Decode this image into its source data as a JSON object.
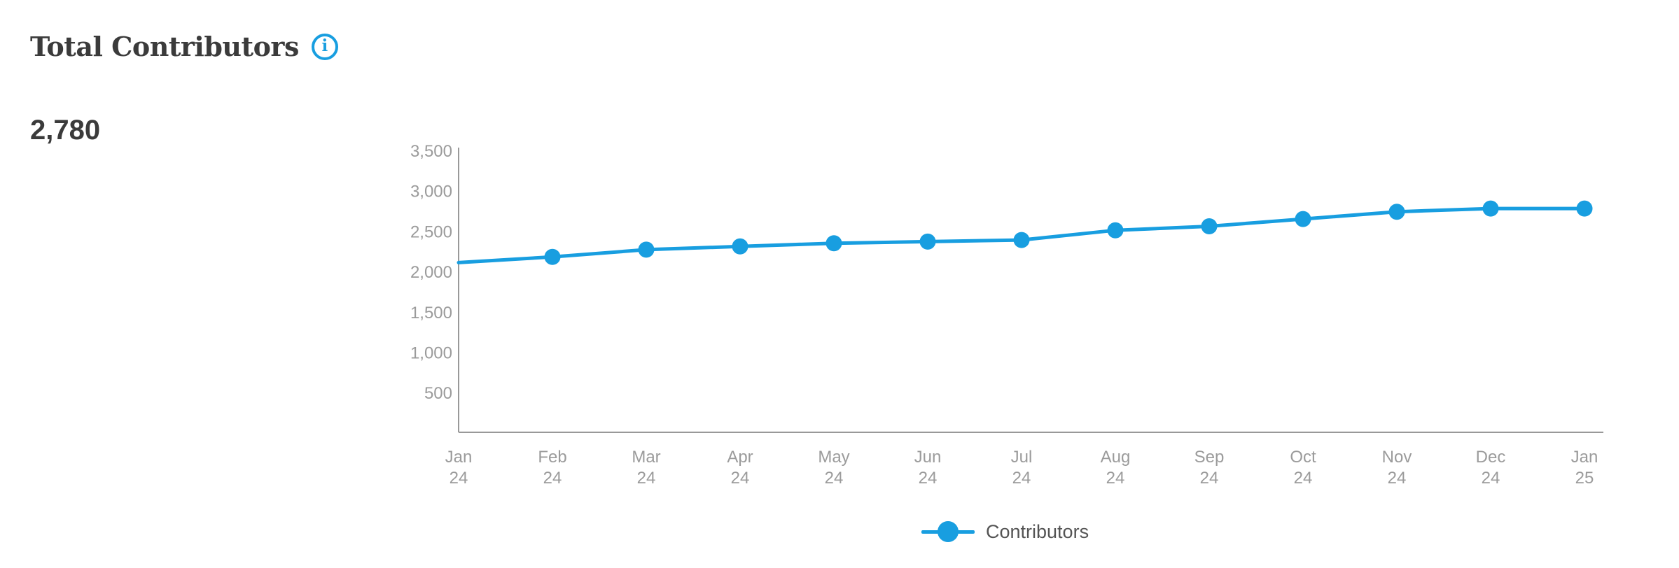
{
  "header": {
    "title": "Total Contributors",
    "info_glyph": "i"
  },
  "stat": {
    "value": "2,780"
  },
  "chart_data": {
    "type": "line",
    "title": "Total Contributors",
    "categories": [
      "Jan 24",
      "Feb 24",
      "Mar 24",
      "Apr 24",
      "May 24",
      "Jun 24",
      "Jul 24",
      "Aug 24",
      "Sep 24",
      "Oct 24",
      "Nov 24",
      "Dec 24",
      "Jan 25"
    ],
    "series": [
      {
        "name": "Contributors",
        "values": [
          2110,
          2180,
          2270,
          2310,
          2350,
          2370,
          2390,
          2510,
          2560,
          2650,
          2740,
          2780,
          2780
        ]
      }
    ],
    "y_ticks": [
      500,
      1000,
      1500,
      2000,
      2500,
      3000,
      3500
    ],
    "y_tick_labels": [
      "500",
      "1,000",
      "1,500",
      "2,000",
      "2,500",
      "3,000",
      "3,500"
    ],
    "ylim": [
      0,
      3535
    ],
    "xlabel": "",
    "ylabel": "",
    "grid": false,
    "marker": "circle",
    "first_point_marker_hidden": true,
    "legend_position": "bottom-center"
  },
  "legend": {
    "items": [
      {
        "label": "Contributors",
        "color": "#189EE0"
      }
    ]
  },
  "colors": {
    "accent": "#189EE0",
    "axis_line": "#999999",
    "tick_label": "#9B9B9B",
    "title_text": "#3B3B3B",
    "stat_text": "#3B3B3B",
    "legend_text": "#545454",
    "background": "#FFFFFF"
  }
}
